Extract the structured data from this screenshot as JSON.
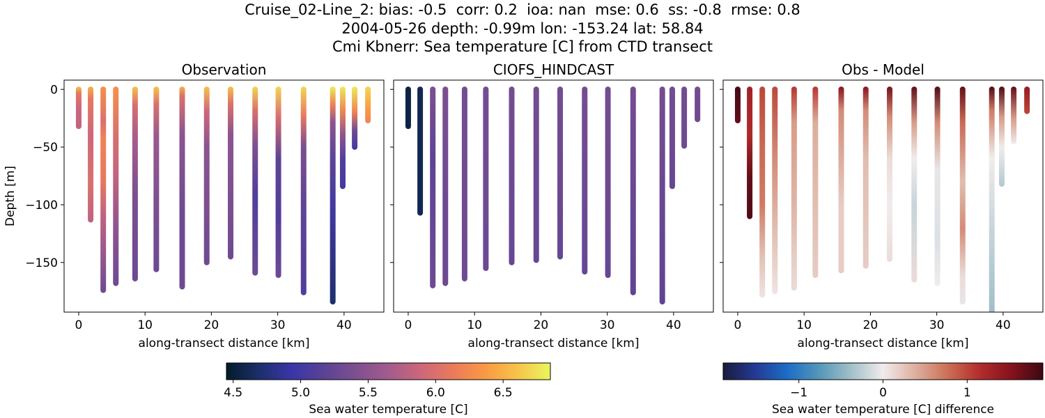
{
  "title": {
    "line1": "Cruise_02-Line_2: bias: -0.5  corr: 0.2  ioa: nan  mse: 0.6  ss: -0.8  rmse: 0.8",
    "line2": "2004-05-26 depth: -0.99m lon: -153.24 lat: 58.84",
    "line3": "Cmi Kbnerr: Sea temperature [C] from CTD transect"
  },
  "chart_data": [
    {
      "type": "scatter",
      "title": "Observation",
      "xlabel": "along-transect distance [km]",
      "ylabel": "Depth [m]",
      "xlim": [
        -2.2,
        46.0
      ],
      "ylim": [
        -193,
        8
      ],
      "xticks": [
        0,
        10,
        20,
        30,
        40
      ],
      "yticks": [
        0,
        -50,
        -100,
        -150
      ],
      "ytick_labels": [
        "0",
        "−50",
        "−100",
        "−150"
      ],
      "colormap": "thermal",
      "casts": [
        {
          "x": 0.0,
          "bottom": -32,
          "stops": [
            [
              0,
              6.6
            ],
            [
              -5,
              6.1
            ],
            [
              -15,
              5.9
            ],
            [
              -32,
              5.8
            ]
          ]
        },
        {
          "x": 1.8,
          "bottom": -113,
          "stops": [
            [
              0,
              6.5
            ],
            [
              -10,
              6.1
            ],
            [
              -40,
              5.9
            ],
            [
              -80,
              6.0
            ],
            [
              -113,
              5.8
            ]
          ]
        },
        {
          "x": 3.7,
          "bottom": -174,
          "stops": [
            [
              0,
              6.3
            ],
            [
              -30,
              6.0
            ],
            [
              -45,
              6.2
            ],
            [
              -80,
              6.1
            ],
            [
              -110,
              5.8
            ],
            [
              -150,
              5.5
            ],
            [
              -174,
              5.3
            ]
          ]
        },
        {
          "x": 5.6,
          "bottom": -168,
          "stops": [
            [
              0,
              6.3
            ],
            [
              -40,
              6.0
            ],
            [
              -80,
              5.8
            ],
            [
              -120,
              5.5
            ],
            [
              -168,
              5.3
            ]
          ]
        },
        {
          "x": 8.5,
          "bottom": -164,
          "stops": [
            [
              0,
              6.6
            ],
            [
              -15,
              6.0
            ],
            [
              -40,
              5.7
            ],
            [
              -90,
              5.4
            ],
            [
              -164,
              5.3
            ]
          ]
        },
        {
          "x": 11.7,
          "bottom": -156,
          "stops": [
            [
              0,
              6.6
            ],
            [
              -15,
              6.0
            ],
            [
              -40,
              5.6
            ],
            [
              -100,
              5.4
            ],
            [
              -156,
              5.3
            ]
          ]
        },
        {
          "x": 15.6,
          "bottom": -171,
          "stops": [
            [
              0,
              6.5
            ],
            [
              -8,
              6.0
            ],
            [
              -40,
              5.5
            ],
            [
              -110,
              5.3
            ],
            [
              -171,
              5.3
            ]
          ]
        },
        {
          "x": 19.3,
          "bottom": -150,
          "stops": [
            [
              0,
              6.6
            ],
            [
              -20,
              5.9
            ],
            [
              -50,
              5.5
            ],
            [
              -150,
              5.3
            ]
          ]
        },
        {
          "x": 22.9,
          "bottom": -145,
          "stops": [
            [
              0,
              6.6
            ],
            [
              -15,
              6.0
            ],
            [
              -40,
              5.5
            ],
            [
              -145,
              5.3
            ]
          ]
        },
        {
          "x": 26.6,
          "bottom": -159,
          "stops": [
            [
              0,
              6.7
            ],
            [
              -20,
              6.0
            ],
            [
              -50,
              5.4
            ],
            [
              -90,
              5.1
            ],
            [
              -159,
              5.3
            ]
          ]
        },
        {
          "x": 30.1,
          "bottom": -161,
          "stops": [
            [
              0,
              6.7
            ],
            [
              -25,
              6.0
            ],
            [
              -60,
              5.2
            ],
            [
              -110,
              5.1
            ],
            [
              -161,
              5.3
            ]
          ]
        },
        {
          "x": 33.9,
          "bottom": -176,
          "stops": [
            [
              0,
              6.7
            ],
            [
              -25,
              6.1
            ],
            [
              -50,
              5.4
            ],
            [
              -100,
              5.2
            ],
            [
              -176,
              5.1
            ]
          ]
        },
        {
          "x": 38.3,
          "bottom": -184,
          "stops": [
            [
              0,
              6.8
            ],
            [
              -15,
              6.2
            ],
            [
              -30,
              5.5
            ],
            [
              -60,
              5.2
            ],
            [
              -100,
              5.0
            ],
            [
              -184,
              4.7
            ]
          ]
        },
        {
          "x": 39.8,
          "bottom": -84,
          "stops": [
            [
              0,
              6.8
            ],
            [
              -20,
              6.2
            ],
            [
              -40,
              5.5
            ],
            [
              -60,
              5.1
            ],
            [
              -84,
              5.0
            ]
          ]
        },
        {
          "x": 41.6,
          "bottom": -50,
          "stops": [
            [
              0,
              6.8
            ],
            [
              -20,
              6.2
            ],
            [
              -35,
              5.3
            ],
            [
              -50,
              5.0
            ]
          ]
        },
        {
          "x": 43.6,
          "bottom": -27,
          "stops": [
            [
              0,
              6.7
            ],
            [
              -15,
              6.4
            ],
            [
              -27,
              6.2
            ]
          ]
        }
      ]
    },
    {
      "type": "scatter",
      "title": "CIOFS_HINDCAST",
      "xlabel": "along-transect distance [km]",
      "xlim": [
        -2.2,
        46.0
      ],
      "ylim": [
        -193,
        8
      ],
      "xticks": [
        0,
        10,
        20,
        30,
        40
      ],
      "colormap": "thermal",
      "casts": [
        {
          "x": 0.0,
          "bottom": -32,
          "stops": [
            [
              0,
              4.55
            ],
            [
              -32,
              4.55
            ]
          ]
        },
        {
          "x": 1.8,
          "bottom": -107,
          "stops": [
            [
              0,
              4.6
            ],
            [
              -107,
              4.6
            ]
          ]
        },
        {
          "x": 3.7,
          "bottom": -170,
          "stops": [
            [
              0,
              5.4
            ],
            [
              -60,
              5.2
            ],
            [
              -170,
              5.3
            ]
          ]
        },
        {
          "x": 5.6,
          "bottom": -168,
          "stops": [
            [
              0,
              5.4
            ],
            [
              -100,
              5.3
            ],
            [
              -168,
              5.3
            ]
          ]
        },
        {
          "x": 8.5,
          "bottom": -164,
          "stops": [
            [
              0,
              5.35
            ],
            [
              -164,
              5.3
            ]
          ]
        },
        {
          "x": 11.7,
          "bottom": -155,
          "stops": [
            [
              0,
              5.35
            ],
            [
              -155,
              5.3
            ]
          ]
        },
        {
          "x": 15.6,
          "bottom": -150,
          "stops": [
            [
              0,
              5.35
            ],
            [
              -150,
              5.25
            ]
          ]
        },
        {
          "x": 19.3,
          "bottom": -148,
          "stops": [
            [
              0,
              5.35
            ],
            [
              -148,
              5.25
            ]
          ]
        },
        {
          "x": 22.9,
          "bottom": -145,
          "stops": [
            [
              0,
              5.35
            ],
            [
              -145,
              5.25
            ]
          ]
        },
        {
          "x": 26.6,
          "bottom": -158,
          "stops": [
            [
              0,
              5.35
            ],
            [
              -158,
              5.25
            ]
          ]
        },
        {
          "x": 30.1,
          "bottom": -161,
          "stops": [
            [
              0,
              5.35
            ],
            [
              -161,
              5.25
            ]
          ]
        },
        {
          "x": 33.9,
          "bottom": -176,
          "stops": [
            [
              0,
              5.35
            ],
            [
              -176,
              5.2
            ]
          ]
        },
        {
          "x": 38.3,
          "bottom": -184,
          "stops": [
            [
              0,
              5.35
            ],
            [
              -184,
              5.2
            ]
          ]
        },
        {
          "x": 39.8,
          "bottom": -84,
          "stops": [
            [
              0,
              5.35
            ],
            [
              -84,
              5.25
            ]
          ]
        },
        {
          "x": 41.6,
          "bottom": -49,
          "stops": [
            [
              0,
              5.35
            ],
            [
              -49,
              5.3
            ]
          ]
        },
        {
          "x": 43.6,
          "bottom": -26,
          "stops": [
            [
              0,
              5.35
            ],
            [
              -26,
              5.3
            ]
          ]
        }
      ]
    },
    {
      "type": "scatter",
      "title": "Obs - Model",
      "xlabel": "along-transect distance [km]",
      "xlim": [
        -2.2,
        46.0
      ],
      "ylim": [
        -193,
        8
      ],
      "xticks": [
        0,
        10,
        20,
        30,
        40
      ],
      "colormap": "balance",
      "casts": [
        {
          "x": 0.0,
          "bottom": -27,
          "stops": [
            [
              0,
              1.85
            ],
            [
              -27,
              1.7
            ]
          ]
        },
        {
          "x": 1.8,
          "bottom": -110,
          "stops": [
            [
              0,
              1.3
            ],
            [
              -40,
              1.2
            ],
            [
              -75,
              1.7
            ],
            [
              -110,
              1.8
            ]
          ]
        },
        {
          "x": 3.7,
          "bottom": -178,
          "stops": [
            [
              0,
              1.0
            ],
            [
              -50,
              0.8
            ],
            [
              -100,
              0.7
            ],
            [
              -140,
              0.3
            ],
            [
              -178,
              0.05
            ]
          ]
        },
        {
          "x": 5.6,
          "bottom": -175,
          "stops": [
            [
              0,
              1.0
            ],
            [
              -60,
              0.6
            ],
            [
              -120,
              0.3
            ],
            [
              -175,
              0.05
            ]
          ]
        },
        {
          "x": 8.5,
          "bottom": -172,
          "stops": [
            [
              0,
              1.1
            ],
            [
              -30,
              0.5
            ],
            [
              -100,
              0.35
            ],
            [
              -172,
              0.1
            ]
          ]
        },
        {
          "x": 11.7,
          "bottom": -161,
          "stops": [
            [
              0,
              1.1
            ],
            [
              -30,
              0.4
            ],
            [
              -161,
              0.2
            ]
          ]
        },
        {
          "x": 15.6,
          "bottom": -157,
          "stops": [
            [
              0,
              1.5
            ],
            [
              -20,
              0.6
            ],
            [
              -100,
              0.2
            ],
            [
              -157,
              0.2
            ]
          ]
        },
        {
          "x": 19.3,
          "bottom": -153,
          "stops": [
            [
              0,
              1.5
            ],
            [
              -20,
              0.6
            ],
            [
              -60,
              0.3
            ],
            [
              -153,
              0.2
            ]
          ]
        },
        {
          "x": 22.9,
          "bottom": -147,
          "stops": [
            [
              0,
              1.6
            ],
            [
              -25,
              0.6
            ],
            [
              -60,
              0.1
            ],
            [
              -100,
              0.0
            ],
            [
              -147,
              0.1
            ]
          ]
        },
        {
          "x": 26.6,
          "bottom": -165,
          "stops": [
            [
              0,
              1.7
            ],
            [
              -30,
              0.5
            ],
            [
              -60,
              0.0
            ],
            [
              -100,
              -0.2
            ],
            [
              -165,
              0.1
            ]
          ]
        },
        {
          "x": 30.1,
          "bottom": -168,
          "stops": [
            [
              0,
              1.8
            ],
            [
              -30,
              0.6
            ],
            [
              -70,
              -0.05
            ],
            [
              -130,
              -0.1
            ],
            [
              -168,
              0.0
            ]
          ]
        },
        {
          "x": 33.9,
          "bottom": -184,
          "stops": [
            [
              0,
              1.7
            ],
            [
              -30,
              0.8
            ],
            [
              -80,
              0.3
            ],
            [
              -120,
              0.6
            ],
            [
              -160,
              0.1
            ],
            [
              -184,
              -0.05
            ]
          ]
        },
        {
          "x": 38.3,
          "bottom": -193,
          "stops": [
            [
              0,
              1.8
            ],
            [
              -20,
              0.7
            ],
            [
              -60,
              0.0
            ],
            [
              -120,
              -0.2
            ],
            [
              -193,
              -0.4
            ]
          ]
        },
        {
          "x": 39.8,
          "bottom": -82,
          "stops": [
            [
              0,
              1.8
            ],
            [
              -25,
              0.5
            ],
            [
              -50,
              0.0
            ],
            [
              -82,
              -0.3
            ]
          ]
        },
        {
          "x": 41.6,
          "bottom": -45,
          "stops": [
            [
              0,
              1.7
            ],
            [
              -25,
              0.5
            ],
            [
              -45,
              0.0
            ]
          ]
        },
        {
          "x": 43.6,
          "bottom": -19,
          "stops": [
            [
              0,
              1.4
            ],
            [
              -19,
              1.0
            ]
          ]
        }
      ]
    }
  ],
  "colorbars": [
    {
      "label": "Sea water temperature [C]",
      "min": 4.45,
      "max": 6.85,
      "ticks": [
        4.5,
        5.0,
        5.5,
        6.0,
        6.5
      ],
      "tick_labels": [
        "4.5",
        "5.0",
        "5.5",
        "6.0",
        "6.5"
      ],
      "colormap": "thermal"
    },
    {
      "label": "Sea water temperature [C] difference",
      "min": -1.9,
      "max": 1.9,
      "ticks": [
        -1,
        0,
        1
      ],
      "tick_labels": [
        "−1",
        "0",
        "1"
      ],
      "colormap": "balance"
    }
  ],
  "colormaps": {
    "thermal": [
      "#041b29",
      "#1c2f6a",
      "#3a35a8",
      "#5a4295",
      "#7d5090",
      "#a45b8c",
      "#cc677b",
      "#eb7a5c",
      "#f99a43",
      "#f7c44b",
      "#e9f65d"
    ],
    "balance": [
      "#191c3c",
      "#243a94",
      "#1c6dc6",
      "#5497b8",
      "#a2c0c9",
      "#f0ecec",
      "#ddb0a0",
      "#cc7157",
      "#b32e2d",
      "#86121e",
      "#3c0912"
    ]
  }
}
